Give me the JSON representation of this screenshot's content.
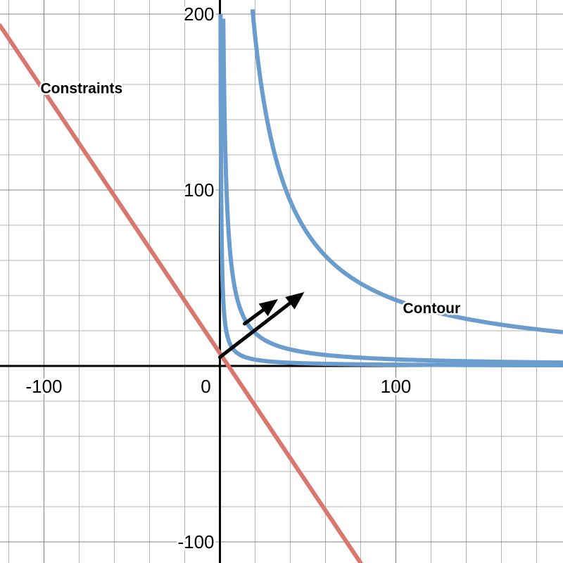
{
  "chart_data": {
    "type": "line",
    "xlim": [
      -125,
      195
    ],
    "ylim": [
      -112,
      208
    ],
    "grid": true,
    "minor_step": 20,
    "major_step": 100,
    "x_ticks": [
      -100,
      0,
      100
    ],
    "x_tick_labels": [
      "-100",
      "0",
      "100"
    ],
    "y_ticks": [
      -100,
      100,
      200
    ],
    "y_tick_labels": [
      "-100",
      "100",
      "200"
    ],
    "annotations": [
      {
        "text": "Constraints",
        "x": -102,
        "y": 155
      },
      {
        "text": "Contour",
        "x": 104,
        "y": 30
      }
    ],
    "series": [
      {
        "kind": "constraint",
        "color": "#d9776f",
        "points": [
          [
            -125,
            193.5
          ],
          [
            80,
            -112
          ]
        ]
      },
      {
        "kind": "contour",
        "color": "#6a9ccd",
        "equation": "y = k / x",
        "k": 3750,
        "x_range": [
          18.5,
          195
        ]
      },
      {
        "kind": "contour",
        "color": "#6a9ccd",
        "equation": "y = k / x",
        "k": 375,
        "x_range": [
          1.9,
          195
        ]
      },
      {
        "kind": "contour",
        "color": "#6a9ccd",
        "equation": "y = k / x",
        "k": 72,
        "x_range": [
          0.36,
          195
        ]
      }
    ],
    "arrows": [
      {
        "from": [
          0,
          5
        ],
        "to": [
          48,
          42
        ],
        "color": "#000000"
      },
      {
        "from": [
          14,
          24
        ],
        "to": [
          33,
          38
        ],
        "color": "#000000"
      }
    ]
  }
}
